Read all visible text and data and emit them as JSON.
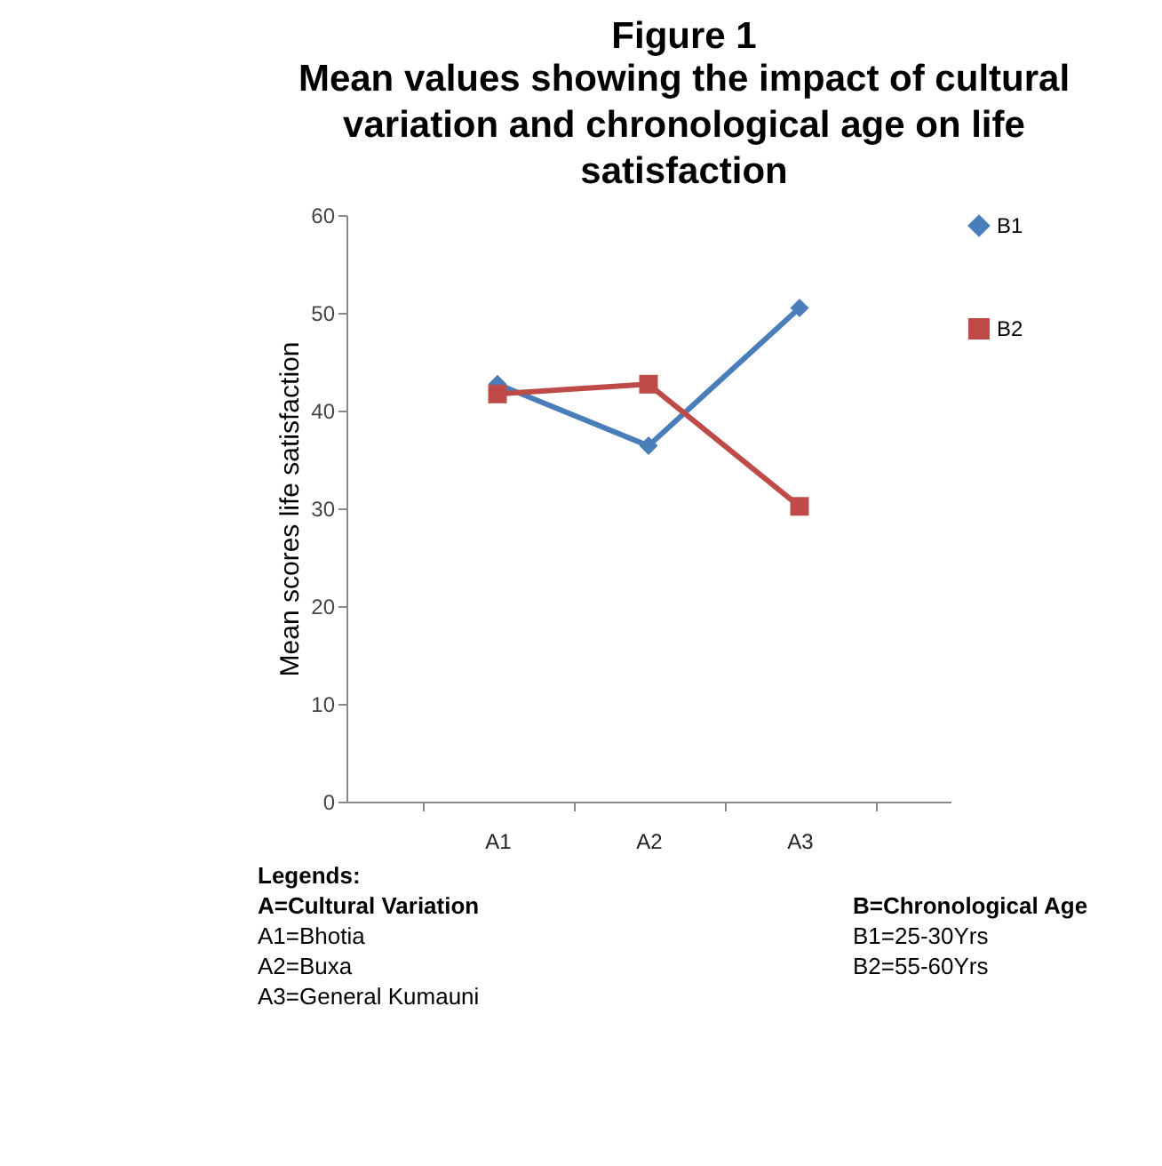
{
  "chart_data": {
    "type": "line",
    "title": "Figure 1",
    "subtitle": "Mean values showing the impact of cultural variation and chronological age on life satisfaction",
    "ylabel": "Mean scores life satisfaction",
    "categories": [
      "A1",
      "A2",
      "A3"
    ],
    "series": [
      {
        "name": "B1",
        "color": "#4a7ebb",
        "marker": "diamond",
        "values": [
          42.7,
          36.4,
          50.5
        ]
      },
      {
        "name": "B2",
        "color": "#be4b48",
        "marker": "square",
        "values": [
          41.7,
          42.7,
          30.2
        ]
      }
    ],
    "ylim": [
      0,
      60
    ],
    "yticks": [
      0,
      10,
      20,
      30,
      40,
      50,
      60
    ],
    "grid": false,
    "line_style": "solid",
    "legend": "right",
    "annotations": [
      "Legends:",
      "A=Cultural Variation",
      "A1=Bhotia",
      "A2=Buxa",
      "A3=General Kumauni",
      "B=Chronological Age",
      "B1=25-30Yrs",
      "B2=55-60Yrs"
    ]
  }
}
